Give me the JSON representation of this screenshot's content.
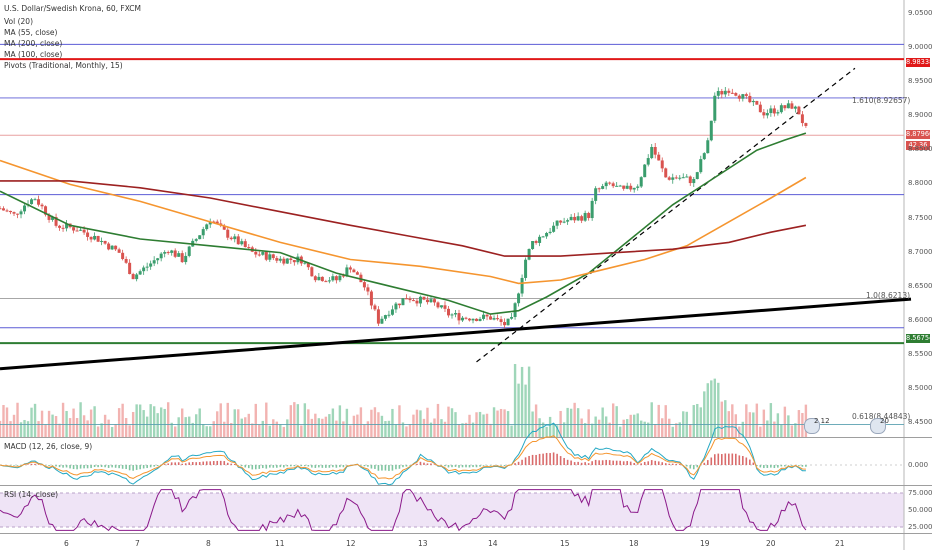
{
  "header": {
    "symbol_line": "U.S. Dollar/Swedish Krona, 60, FXCM",
    "indicators": [
      "Vol (20)",
      "MA (55, close)",
      "MA (200, close)",
      "MA (100, close)",
      "Pivots (Traditional, Monthly, 15)"
    ]
  },
  "colors": {
    "up": "#3a9d6d",
    "down": "#d9534f",
    "ma55": "#2e7d32",
    "ma100": "#f5952f",
    "ma200": "#9c2121",
    "trend": "#000000",
    "pivot_red": "#e01818",
    "pivot_green": "#2e7d32",
    "fib_blue": "#5b5bd6",
    "macd": "#26a9c4",
    "signal": "#f5952f",
    "rsi": "#8b1a8b"
  },
  "price_tags": {
    "red_pivot": "8.98338",
    "last_fill": "8.87960",
    "rsi_last": "42.36",
    "green_pivot": "8.56754"
  },
  "fib_labels": {
    "upper": "1.610(8.92657)",
    "lower": "0.618(8.44843)",
    "middle": "1.0(8.6213)"
  },
  "event_badges": [
    "2 12",
    "20"
  ],
  "panels": {
    "macd_label": "MACD (12, 26, close, 9)",
    "rsi_label": "RSI (14, close)",
    "macd_tick": "0.000",
    "rsi_ticks": [
      "75.000",
      "50.000",
      "25.000"
    ]
  },
  "chart_data": {
    "type": "line",
    "title": "U.S. Dollar/Swedish Krona, 60, FXCM",
    "x_ticks": [
      "6",
      "7",
      "8",
      "11",
      "12",
      "13",
      "14",
      "15",
      "18",
      "19",
      "20",
      "21"
    ],
    "y_ticks": [
      "9.05000",
      "9.00000",
      "8.95000",
      "8.90000",
      "8.85000",
      "8.80000",
      "8.75000",
      "8.70000",
      "8.65000",
      "8.60000",
      "8.55000",
      "8.50000",
      "8.45000"
    ],
    "ylim": [
      8.43,
      9.07
    ],
    "grid": false,
    "price_path": [
      [
        0,
        8.765
      ],
      [
        2,
        8.755
      ],
      [
        4,
        8.775
      ],
      [
        5,
        8.78
      ],
      [
        8,
        8.74
      ],
      [
        11,
        8.735
      ],
      [
        14,
        8.72
      ],
      [
        17,
        8.7
      ],
      [
        19,
        8.665
      ],
      [
        21,
        8.68
      ],
      [
        24,
        8.705
      ],
      [
        26,
        8.69
      ],
      [
        28,
        8.72
      ],
      [
        30,
        8.75
      ],
      [
        32,
        8.73
      ],
      [
        34,
        8.715
      ],
      [
        36,
        8.7
      ],
      [
        38,
        8.695
      ],
      [
        40,
        8.69
      ],
      [
        43,
        8.69
      ],
      [
        45,
        8.665
      ],
      [
        48,
        8.66
      ],
      [
        50,
        8.68
      ],
      [
        52,
        8.65
      ],
      [
        54,
        8.6
      ],
      [
        56,
        8.62
      ],
      [
        58,
        8.635
      ],
      [
        60,
        8.63
      ],
      [
        62,
        8.625
      ],
      [
        64,
        8.61
      ],
      [
        66,
        8.605
      ],
      [
        70,
        8.605
      ],
      [
        72,
        8.595
      ],
      [
        73,
        8.6
      ],
      [
        75,
        8.69
      ],
      [
        76,
        8.715
      ],
      [
        78,
        8.73
      ],
      [
        80,
        8.745
      ],
      [
        82,
        8.75
      ],
      [
        84,
        8.755
      ],
      [
        85,
        8.79
      ],
      [
        87,
        8.8
      ],
      [
        89,
        8.79
      ],
      [
        91,
        8.8
      ],
      [
        93,
        8.855
      ],
      [
        95,
        8.81
      ],
      [
        97,
        8.81
      ],
      [
        99,
        8.805
      ],
      [
        101,
        8.86
      ],
      [
        102,
        8.93
      ],
      [
        104,
        8.94
      ],
      [
        105,
        8.935
      ],
      [
        107,
        8.92
      ],
      [
        109,
        8.905
      ],
      [
        111,
        8.91
      ],
      [
        113,
        8.915
      ],
      [
        114,
        8.905
      ],
      [
        115,
        8.88
      ]
    ],
    "series": [
      {
        "name": "MA (55, close)",
        "values": [
          [
            0,
            8.79
          ],
          [
            10,
            8.74
          ],
          [
            20,
            8.72
          ],
          [
            30,
            8.71
          ],
          [
            40,
            8.7
          ],
          [
            48,
            8.67
          ],
          [
            56,
            8.65
          ],
          [
            64,
            8.63
          ],
          [
            70,
            8.61
          ],
          [
            74,
            8.615
          ],
          [
            78,
            8.635
          ],
          [
            84,
            8.67
          ],
          [
            90,
            8.72
          ],
          [
            96,
            8.77
          ],
          [
            102,
            8.81
          ],
          [
            108,
            8.85
          ],
          [
            112,
            8.865
          ],
          [
            115,
            8.875
          ]
        ]
      },
      {
        "name": "MA (100, close)",
        "values": [
          [
            0,
            8.835
          ],
          [
            10,
            8.8
          ],
          [
            20,
            8.775
          ],
          [
            30,
            8.745
          ],
          [
            40,
            8.715
          ],
          [
            50,
            8.69
          ],
          [
            60,
            8.68
          ],
          [
            70,
            8.665
          ],
          [
            74,
            8.655
          ],
          [
            80,
            8.66
          ],
          [
            86,
            8.675
          ],
          [
            92,
            8.69
          ],
          [
            98,
            8.71
          ],
          [
            104,
            8.745
          ],
          [
            110,
            8.78
          ],
          [
            115,
            8.81
          ]
        ]
      },
      {
        "name": "MA (200, close)",
        "values": [
          [
            0,
            8.805
          ],
          [
            10,
            8.805
          ],
          [
            20,
            8.795
          ],
          [
            30,
            8.78
          ],
          [
            40,
            8.76
          ],
          [
            50,
            8.74
          ],
          [
            58,
            8.725
          ],
          [
            66,
            8.71
          ],
          [
            72,
            8.695
          ],
          [
            80,
            8.695
          ],
          [
            88,
            8.7
          ],
          [
            96,
            8.705
          ],
          [
            104,
            8.715
          ],
          [
            110,
            8.73
          ],
          [
            115,
            8.74
          ]
        ]
      }
    ],
    "annotations": {
      "pivot_red": 8.98338,
      "pivot_green": 8.56754,
      "fib_upper": 8.92657,
      "fib_1_0": 8.6213,
      "fib_lower": 8.44843,
      "level_a": 9.005,
      "level_b": 8.872,
      "level_c": 8.785,
      "level_d": 8.633,
      "level_e": 8.59,
      "trendline_black": [
        [
          0,
          8.53
        ],
        [
          130,
          8.632
        ]
      ],
      "trendline_dashed": [
        [
          68,
          8.54
        ],
        [
          122,
          8.97
        ]
      ]
    },
    "volume_scale": [
      0,
      1
    ],
    "macd": {
      "zero": 0,
      "range": [
        -1,
        1
      ]
    },
    "rsi": {
      "levels": [
        75,
        50,
        25
      ],
      "last": 42.36
    }
  }
}
